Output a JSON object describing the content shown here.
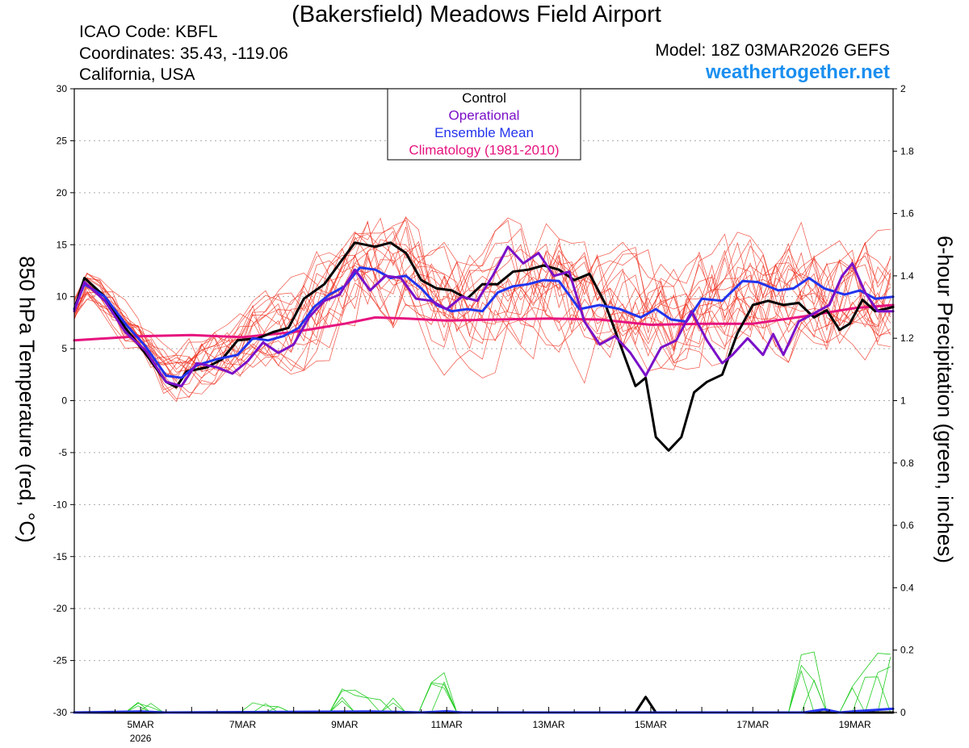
{
  "header": {
    "title": "(Bakersfield) Meadows Field Airport",
    "icao": "ICAO Code: KBFL",
    "coordinates": "Coordinates: 35.43, -119.06",
    "location": "California, USA",
    "model": "Model: 18Z 03MAR2026 GEFS",
    "site": "weathertogether.net"
  },
  "colors": {
    "control": "#000000",
    "operational": "#7a10c8",
    "mean": "#2233ee",
    "climatology": "#e6137f",
    "members": "#ee3322",
    "precip": "#22cc22",
    "site": "#1a8ff0"
  },
  "chart_data": {
    "type": "line",
    "title": "(Bakersfield) Meadows Field Airport",
    "ylabel": "850 hPa Temperature (red, °C)",
    "y2label": "6-hour Precipitation (green, inches)",
    "x_unit": "days since 00Z 04MAR2026",
    "xlim": [
      -0.3,
      15.75
    ],
    "ylim": [
      -30,
      30
    ],
    "y2lim": [
      0,
      2
    ],
    "yticks": [
      "30",
      "25",
      "20",
      "15",
      "10",
      "5",
      "0",
      "-5",
      "-10",
      "-15",
      "-20",
      "-25",
      "-30"
    ],
    "y2ticks": [
      "2",
      "1.8",
      "1.6",
      "1.4",
      "1.2",
      "1",
      "0.8",
      "0.6",
      "0.4",
      "0.2",
      "0"
    ],
    "xticks": [
      {
        "day": 1,
        "label": "5MAR",
        "sub": "2026"
      },
      {
        "day": 3,
        "label": "7MAR"
      },
      {
        "day": 5,
        "label": "9MAR"
      },
      {
        "day": 7,
        "label": "11MAR"
      },
      {
        "day": 9,
        "label": "13MAR"
      },
      {
        "day": 11,
        "label": "15MAR"
      },
      {
        "day": 13,
        "label": "17MAR"
      },
      {
        "day": 15,
        "label": "19MAR"
      }
    ],
    "legend": {
      "position": "top-center",
      "entries": [
        "Control",
        "Operational",
        "Ensemble Mean",
        "Climatology (1981-2010)"
      ]
    },
    "series": [
      {
        "name": "Control",
        "key": "control",
        "width": 3,
        "points": [
          [
            -0.3,
            8.8
          ],
          [
            -0.1,
            11.8
          ],
          [
            0.3,
            10
          ],
          [
            0.7,
            7
          ],
          [
            1.1,
            4.5
          ],
          [
            1.5,
            1.8
          ],
          [
            1.7,
            1.3
          ],
          [
            1.9,
            2.8
          ],
          [
            2.3,
            3.2
          ],
          [
            2.6,
            4
          ],
          [
            2.9,
            5.8
          ],
          [
            3.3,
            6
          ],
          [
            3.6,
            6.6
          ],
          [
            3.9,
            7
          ],
          [
            4.2,
            9.8
          ],
          [
            4.6,
            11.2
          ],
          [
            4.9,
            13.2
          ],
          [
            5.2,
            15.2
          ],
          [
            5.6,
            14.8
          ],
          [
            5.9,
            15.2
          ],
          [
            6.2,
            14.2
          ],
          [
            6.5,
            11.6
          ],
          [
            6.8,
            10.8
          ],
          [
            7.1,
            10.6
          ],
          [
            7.4,
            9.8
          ],
          [
            7.7,
            11.2
          ],
          [
            8.0,
            11.2
          ],
          [
            8.3,
            12.4
          ],
          [
            8.6,
            12.6
          ],
          [
            8.9,
            13
          ],
          [
            9.2,
            12.6
          ],
          [
            9.5,
            11.6
          ],
          [
            9.8,
            12.2
          ],
          [
            10.1,
            9.4
          ],
          [
            10.4,
            5.4
          ],
          [
            10.7,
            1.4
          ],
          [
            10.9,
            2.2
          ],
          [
            11.1,
            -3.5
          ],
          [
            11.35,
            -4.8
          ],
          [
            11.6,
            -3.5
          ],
          [
            11.85,
            0.8
          ],
          [
            12.1,
            1.8
          ],
          [
            12.4,
            2.5
          ],
          [
            12.7,
            6.5
          ],
          [
            13.0,
            9.2
          ],
          [
            13.3,
            9.6
          ],
          [
            13.6,
            9.2
          ],
          [
            13.9,
            9.4
          ],
          [
            14.2,
            8
          ],
          [
            14.45,
            8.7
          ],
          [
            14.7,
            6.8
          ],
          [
            14.9,
            7.4
          ],
          [
            15.15,
            9.7
          ],
          [
            15.4,
            8.6
          ],
          [
            15.75,
            9
          ]
        ]
      },
      {
        "name": "Operational",
        "key": "operational",
        "width": 3,
        "points": [
          [
            -0.3,
            8.6
          ],
          [
            -0.1,
            11.4
          ],
          [
            0.3,
            9.6
          ],
          [
            0.7,
            6.6
          ],
          [
            1.1,
            4.8
          ],
          [
            1.5,
            1.8
          ],
          [
            1.8,
            1.4
          ],
          [
            2.1,
            3.6
          ],
          [
            2.5,
            3.2
          ],
          [
            2.8,
            2.6
          ],
          [
            3.1,
            3.8
          ],
          [
            3.4,
            5.6
          ],
          [
            3.7,
            4.6
          ],
          [
            4.0,
            5.4
          ],
          [
            4.3,
            8.0
          ],
          [
            4.6,
            9.6
          ],
          [
            4.9,
            10.2
          ],
          [
            5.2,
            12.6
          ],
          [
            5.5,
            10.6
          ],
          [
            5.8,
            12
          ],
          [
            6.1,
            11.8
          ],
          [
            6.4,
            9.8
          ],
          [
            6.7,
            9.6
          ],
          [
            7.0,
            8.8
          ],
          [
            7.3,
            10
          ],
          [
            7.6,
            9.6
          ],
          [
            7.9,
            12
          ],
          [
            8.2,
            14.8
          ],
          [
            8.5,
            13.2
          ],
          [
            8.8,
            14.2
          ],
          [
            9.1,
            12
          ],
          [
            9.4,
            12.4
          ],
          [
            9.7,
            7.6
          ],
          [
            10.0,
            5.4
          ],
          [
            10.3,
            6.2
          ],
          [
            10.6,
            4.6
          ],
          [
            10.9,
            2.4
          ],
          [
            11.2,
            5.1
          ],
          [
            11.5,
            5.8
          ],
          [
            11.8,
            8.6
          ],
          [
            12.1,
            5.8
          ],
          [
            12.4,
            3.6
          ],
          [
            12.6,
            4.4
          ],
          [
            12.9,
            6.0
          ],
          [
            13.2,
            4.4
          ],
          [
            13.4,
            6.4
          ],
          [
            13.6,
            4.4
          ],
          [
            13.9,
            7.6
          ],
          [
            14.2,
            8.4
          ],
          [
            14.5,
            9.2
          ],
          [
            14.75,
            12
          ],
          [
            14.95,
            13.2
          ],
          [
            15.2,
            10.4
          ],
          [
            15.45,
            8.6
          ],
          [
            15.75,
            8.6
          ]
        ]
      },
      {
        "name": "Ensemble Mean",
        "key": "mean",
        "width": 3,
        "points": [
          [
            -0.3,
            8.8
          ],
          [
            -0.1,
            11.2
          ],
          [
            0.3,
            10
          ],
          [
            0.7,
            7.4
          ],
          [
            1.1,
            5.2
          ],
          [
            1.5,
            2.4
          ],
          [
            1.8,
            2.2
          ],
          [
            2.1,
            3.4
          ],
          [
            2.5,
            4
          ],
          [
            2.9,
            4.4
          ],
          [
            3.2,
            6
          ],
          [
            3.5,
            5.8
          ],
          [
            3.8,
            6.2
          ],
          [
            4.1,
            7
          ],
          [
            4.4,
            9
          ],
          [
            4.7,
            10.2
          ],
          [
            5.0,
            11
          ],
          [
            5.3,
            12.8
          ],
          [
            5.6,
            12.6
          ],
          [
            5.9,
            11.8
          ],
          [
            6.2,
            12
          ],
          [
            6.5,
            10.8
          ],
          [
            6.8,
            9.2
          ],
          [
            7.1,
            8.6
          ],
          [
            7.4,
            8.8
          ],
          [
            7.7,
            8.6
          ],
          [
            8.0,
            10.4
          ],
          [
            8.3,
            11
          ],
          [
            8.6,
            11.2
          ],
          [
            8.9,
            11.6
          ],
          [
            9.2,
            11.5
          ],
          [
            9.6,
            8.8
          ],
          [
            10.0,
            9.2
          ],
          [
            10.4,
            8.8
          ],
          [
            10.8,
            8
          ],
          [
            11.1,
            8.8
          ],
          [
            11.4,
            7.8
          ],
          [
            11.7,
            7.6
          ],
          [
            12.0,
            9.8
          ],
          [
            12.4,
            9.6
          ],
          [
            12.8,
            11.5
          ],
          [
            13.1,
            11.4
          ],
          [
            13.5,
            10.6
          ],
          [
            13.8,
            10.8
          ],
          [
            14.1,
            11.8
          ],
          [
            14.4,
            10.8
          ],
          [
            14.8,
            10.2
          ],
          [
            15.1,
            10.6
          ],
          [
            15.4,
            9.8
          ],
          [
            15.75,
            10
          ]
        ]
      },
      {
        "name": "Climatology (1981-2010)",
        "key": "climatology",
        "width": 3,
        "points": [
          [
            -0.3,
            5.8
          ],
          [
            1.0,
            6.2
          ],
          [
            2.0,
            6.3
          ],
          [
            3.0,
            6.1
          ],
          [
            4.0,
            6.6
          ],
          [
            5.0,
            7.4
          ],
          [
            5.6,
            8
          ],
          [
            6.2,
            7.9
          ],
          [
            7.0,
            7.7
          ],
          [
            8.0,
            7.8
          ],
          [
            9.0,
            7.9
          ],
          [
            10.0,
            7.8
          ],
          [
            11.0,
            7.3
          ],
          [
            12.0,
            7.4
          ],
          [
            13.0,
            7.4
          ],
          [
            14.0,
            8.1
          ],
          [
            15.0,
            8.9
          ],
          [
            15.75,
            9.2
          ]
        ]
      },
      {
        "name": "Control precip",
        "key": "control",
        "width": 3,
        "axis": "y2",
        "points": [
          [
            -0.3,
            0
          ],
          [
            10.7,
            0
          ],
          [
            10.9,
            0.05
          ],
          [
            11.1,
            0
          ],
          [
            15.75,
            0
          ]
        ]
      },
      {
        "name": "Ensemble Mean precip",
        "key": "mean",
        "width": 3,
        "axis": "y2",
        "points": [
          [
            -0.3,
            0
          ],
          [
            1.0,
            0.003
          ],
          [
            1.5,
            0
          ],
          [
            5.5,
            0.003
          ],
          [
            6.0,
            0.002
          ],
          [
            6.5,
            0
          ],
          [
            7.0,
            0.004
          ],
          [
            7.3,
            0
          ],
          [
            14.0,
            0
          ],
          [
            14.4,
            0.01
          ],
          [
            14.7,
            0
          ],
          [
            15.0,
            0.004
          ],
          [
            15.75,
            0.012
          ]
        ]
      }
    ]
  }
}
